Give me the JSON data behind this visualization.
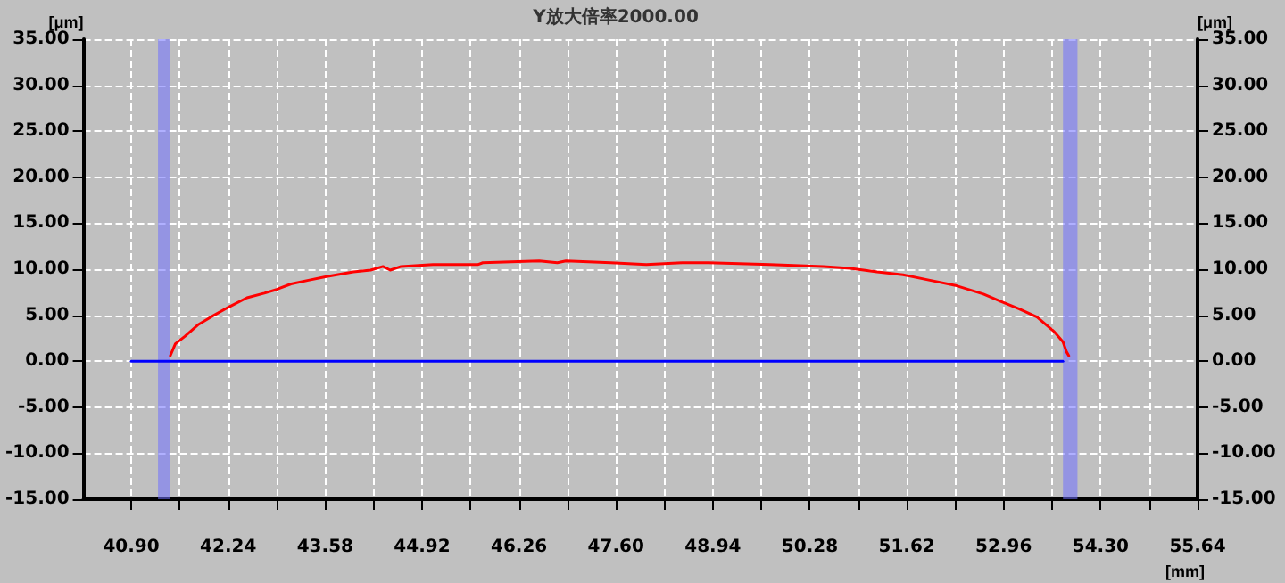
{
  "chart_data": {
    "type": "line",
    "title": "Y放大倍率2000.00",
    "xlabel": "[mm]",
    "ylabel": "[μm]",
    "y2label": "[μm]",
    "xlim": [
      40.24,
      55.64
    ],
    "xticks": [
      {
        "value": 40.9,
        "label": "40.90"
      },
      {
        "value": 41.57,
        "label": null
      },
      42.24,
      {
        "value": 42.91,
        "label": null
      },
      43.58,
      {
        "value": 44.25,
        "label": null
      },
      44.92,
      {
        "value": 45.59,
        "label": null
      },
      46.26,
      {
        "value": 46.93,
        "label": null
      },
      {
        "value": 47.6,
        "label": "47.60"
      },
      {
        "value": 48.27,
        "label": null
      },
      48.94,
      {
        "value": 49.61,
        "label": null
      },
      50.28,
      {
        "value": 50.95,
        "label": null
      },
      51.62,
      {
        "value": 52.29,
        "label": null
      },
      52.96,
      {
        "value": 53.63,
        "label": null
      },
      {
        "value": 54.3,
        "label": "54.30"
      },
      {
        "value": 54.97,
        "label": null
      },
      55.64
    ],
    "ylim": [
      -15,
      35
    ],
    "yticks": [
      {
        "value": -15,
        "label": "-15.00"
      },
      {
        "value": -10,
        "label": "-10.00"
      },
      {
        "value": -5,
        "label": "-5.00"
      },
      {
        "value": 0,
        "label": "0.00"
      },
      {
        "value": 5,
        "label": "5.00"
      },
      {
        "value": 10,
        "label": "10.00"
      },
      {
        "value": 15,
        "label": "15.00"
      },
      {
        "value": 20,
        "label": "20.00"
      },
      {
        "value": 25,
        "label": "25.00"
      },
      {
        "value": 30,
        "label": "30.00"
      },
      {
        "value": 35,
        "label": "35.00"
      }
    ],
    "y2lim": [
      -15,
      35
    ],
    "y2ticks": [
      {
        "value": -15,
        "label": "-15.00"
      },
      {
        "value": -10,
        "label": "-10.00"
      },
      {
        "value": -5,
        "label": "-5.00"
      },
      {
        "value": 0,
        "label": "0.00"
      },
      {
        "value": 5,
        "label": "5.00"
      },
      {
        "value": 10,
        "label": "10.00"
      },
      {
        "value": 15,
        "label": "15.00"
      },
      {
        "value": 20,
        "label": "20.00"
      },
      {
        "value": 25,
        "label": "25.00"
      },
      {
        "value": 30,
        "label": "30.00"
      },
      {
        "value": 35,
        "label": "35.00"
      }
    ],
    "grid": true,
    "marker": "none",
    "line_style": "solid",
    "bands": [
      {
        "axis": "x",
        "from": 41.27,
        "to": 41.44,
        "color": "#7070ff"
      },
      {
        "axis": "x",
        "from": 53.78,
        "to": 53.98,
        "color": "#7070ff"
      }
    ],
    "series": [
      {
        "color": "#0000ff",
        "x": [
          40.9,
          53.78
        ],
        "values": [
          0,
          0
        ]
      },
      {
        "color": "#ff0000",
        "x": [
          41.44,
          41.51,
          41.64,
          41.83,
          42.0,
          42.25,
          42.5,
          42.74,
          42.91,
          43.11,
          43.35,
          43.6,
          43.97,
          44.21,
          44.38,
          44.48,
          44.63,
          45.07,
          45.69,
          45.76,
          46.54,
          46.79,
          46.91,
          47.53,
          48.02,
          48.51,
          48.88,
          49.73,
          50.47,
          50.84,
          51.21,
          51.57,
          51.94,
          52.31,
          52.68,
          52.92,
          53.17,
          53.42,
          53.66,
          53.78,
          53.83,
          53.86
        ],
        "values": [
          0.6,
          1.9,
          2.7,
          4.0,
          4.8,
          5.9,
          6.9,
          7.4,
          7.8,
          8.4,
          8.8,
          9.2,
          9.7,
          9.9,
          10.3,
          9.9,
          10.3,
          10.5,
          10.5,
          10.7,
          10.9,
          10.7,
          10.9,
          10.7,
          10.5,
          10.7,
          10.7,
          10.5,
          10.3,
          10.1,
          9.7,
          9.4,
          8.8,
          8.2,
          7.3,
          6.5,
          5.7,
          4.8,
          3.2,
          2.1,
          1.0,
          0.6
        ]
      }
    ]
  }
}
